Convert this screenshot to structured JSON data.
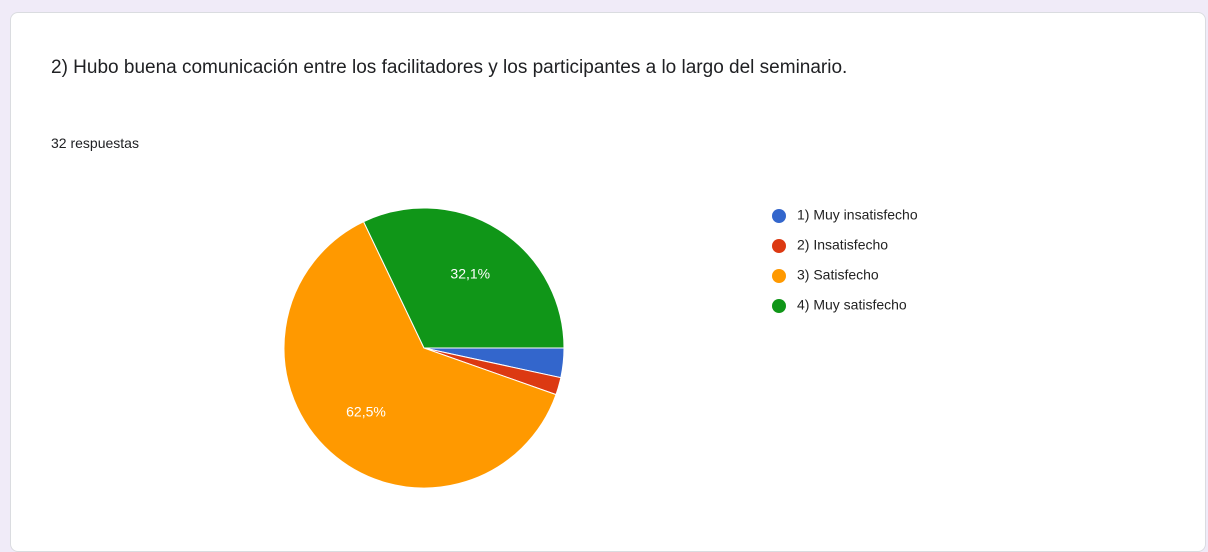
{
  "chart_data": {
    "type": "pie",
    "title": "2) Hubo buena comunicación entre los facilitadores y los participantes a lo largo del seminario.",
    "subtitle": "32 respuestas",
    "categories": [
      "1) Muy insatisfecho",
      "2) Insatisfecho",
      "3) Satisfecho",
      "4) Muy satisfecho"
    ],
    "values": [
      3.4,
      2.0,
      62.5,
      32.1
    ],
    "value_labels": [
      null,
      null,
      "62,5%",
      "32,1%"
    ],
    "colors": [
      "#3366cc",
      "#dc3912",
      "#ff9900",
      "#109618"
    ]
  }
}
